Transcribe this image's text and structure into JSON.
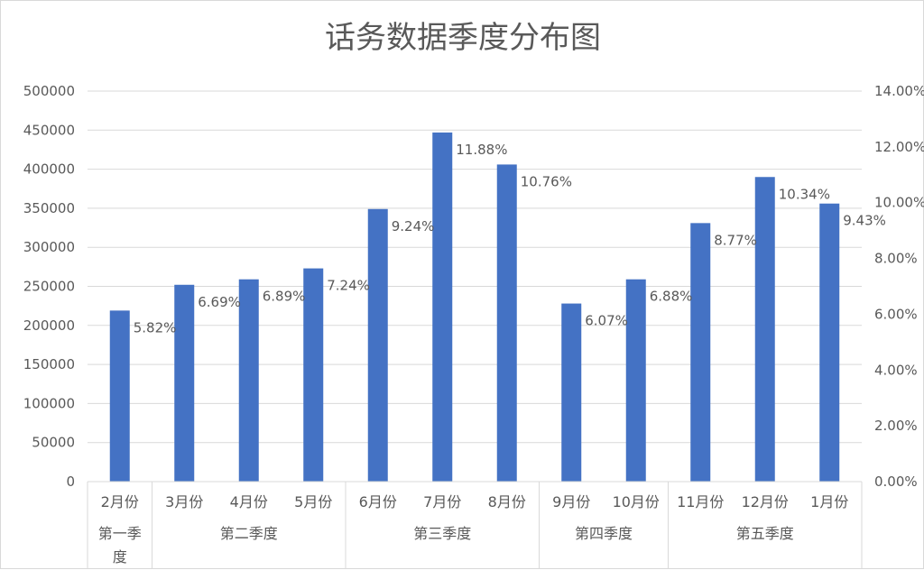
{
  "chart_data": {
    "type": "bar",
    "title": "话务数据季度分布图",
    "categories": [
      "2月份",
      "3月份",
      "4月份",
      "5月份",
      "6月份",
      "7月份",
      "8月份",
      "9月份",
      "10月份",
      "11月份",
      "12月份",
      "1月份"
    ],
    "groups": [
      {
        "label": "第一季度",
        "label_lines": [
          "第一季",
          "度"
        ],
        "start": 0,
        "end": 0
      },
      {
        "label": "第二季度",
        "label_lines": [
          "第二季度"
        ],
        "start": 1,
        "end": 3
      },
      {
        "label": "第三季度",
        "label_lines": [
          "第三季度"
        ],
        "start": 4,
        "end": 6
      },
      {
        "label": "第四季度",
        "label_lines": [
          "第四季度"
        ],
        "start": 7,
        "end": 8
      },
      {
        "label": "第五季度",
        "label_lines": [
          "第五季度"
        ],
        "start": 9,
        "end": 11
      }
    ],
    "series": [
      {
        "values": [
          219000,
          252000,
          259000,
          273000,
          349000,
          447000,
          406000,
          228000,
          259000,
          331000,
          390000,
          356000
        ]
      }
    ],
    "data_labels": [
      "5.82%",
      "6.69%",
      "6.89%",
      "7.24%",
      "9.24%",
      "11.88%",
      "10.76%",
      "6.07%",
      "6.88%",
      "8.77%",
      "10.34%",
      "9.43%"
    ],
    "ylim": [
      0,
      500000
    ],
    "yticks": [
      "0",
      "50000",
      "100000",
      "150000",
      "200000",
      "250000",
      "300000",
      "350000",
      "400000",
      "450000",
      "500000"
    ],
    "y2lim": [
      0,
      14
    ],
    "y2ticks": [
      "0.00%",
      "2.00%",
      "4.00%",
      "6.00%",
      "8.00%",
      "10.00%",
      "12.00%",
      "14.00%"
    ],
    "grid": true,
    "bar_color": "#4472c4"
  }
}
